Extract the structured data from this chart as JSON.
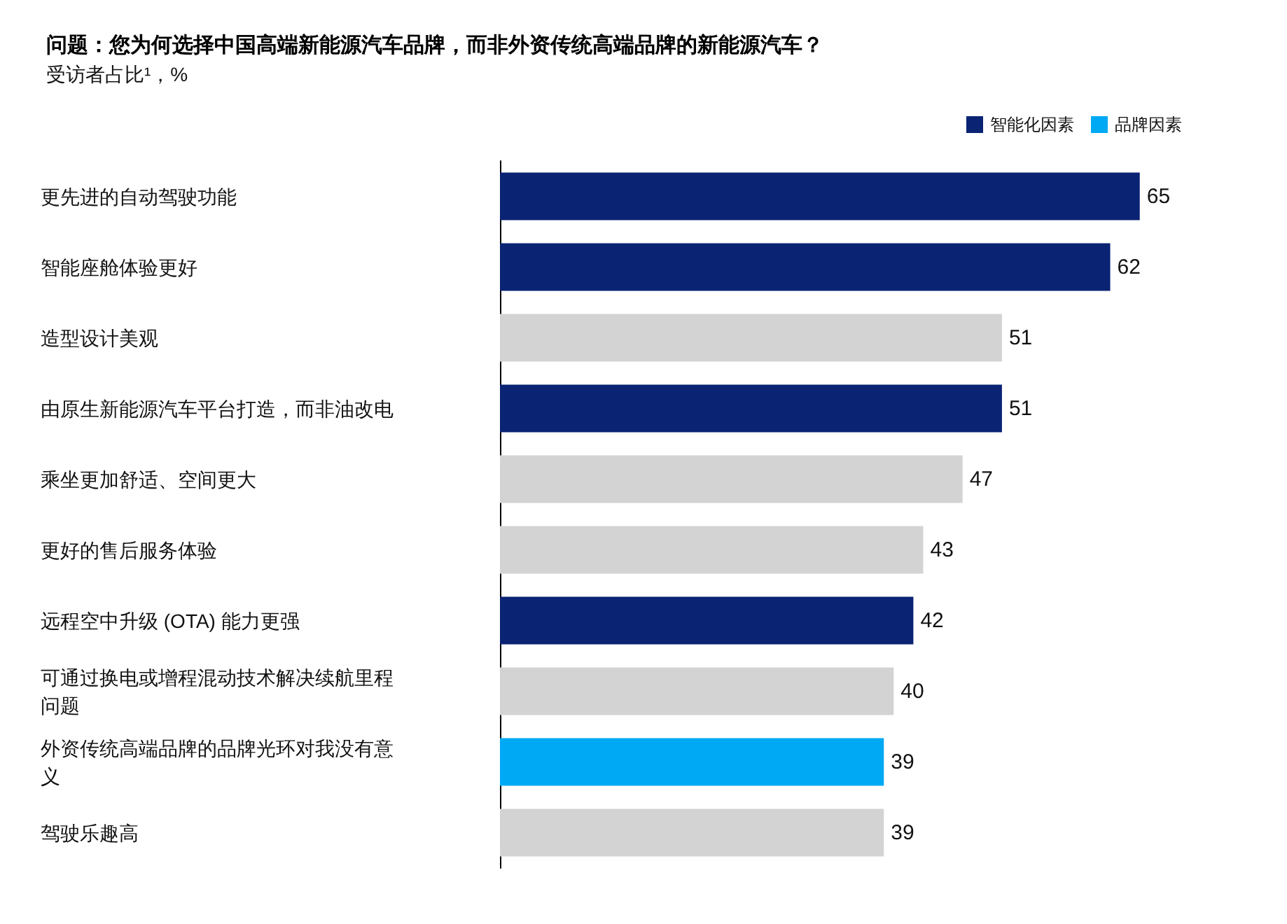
{
  "chart_data": {
    "type": "bar",
    "orientation": "horizontal",
    "stacked": true,
    "data_labels": true,
    "legend": "top right",
    "title": "问题：您为何选择中国高端新能源汽车品牌，而非外资传统高端品牌的新能源汽车？",
    "subtitle": "受访者占比¹，%",
    "categories": [
      "更先进的自动驾驶功能",
      "智能座舱体验更好",
      "造型设计美观",
      "由原生新能源汽车平台打造，而非油改电",
      "乘坐更加舒适、空间更大",
      "更好的售后服务体验",
      "远程空中升级 (OTA) 能力更强",
      "可通过换电或增程混动技术解决续航里程问题",
      "外资传统高端品牌的品牌光环对我没有意义",
      "驾驶乐趣高"
    ],
    "series": [
      {
        "name": "智能化因素",
        "color": "#0a2373",
        "values": [
          65,
          62,
          null,
          51,
          null,
          null,
          42,
          null,
          null,
          null
        ]
      },
      {
        "name": "品牌因素",
        "color": "#00a9f4",
        "values": [
          null,
          null,
          null,
          null,
          null,
          null,
          null,
          null,
          39,
          null
        ]
      },
      {
        "color": "#d3d3d3",
        "values": [
          null,
          null,
          51,
          null,
          47,
          43,
          null,
          40,
          null,
          39
        ]
      }
    ]
  }
}
